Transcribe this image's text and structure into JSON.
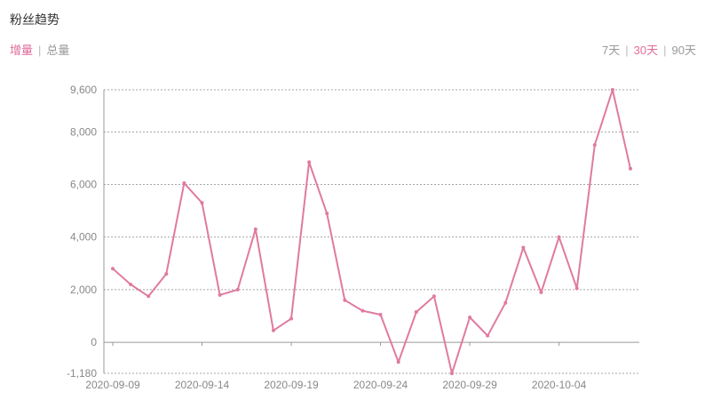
{
  "header": {
    "title": "粉丝趋势"
  },
  "mode_tabs": [
    {
      "label": "增量",
      "active": true
    },
    {
      "label": "总量",
      "active": false
    }
  ],
  "range_tabs": [
    {
      "label": "7天",
      "active": false
    },
    {
      "label": "30天",
      "active": true
    },
    {
      "label": "90天",
      "active": false
    }
  ],
  "separator": "|",
  "colors": {
    "accent": "#e06c9a",
    "line": "#e07aa0",
    "axis": "#999999",
    "grid": "#888888",
    "text": "#888888"
  },
  "chart_data": {
    "type": "line",
    "grid": true,
    "ylim": [
      -1180,
      9600
    ],
    "yticks": [
      -1180,
      0,
      2000,
      4000,
      6000,
      8000,
      9600
    ],
    "ytick_labels": [
      "-1,180",
      "0",
      "2,000",
      "4,000",
      "6,000",
      "8,000",
      "9,600"
    ],
    "xtick_labels": [
      "2020-09-09",
      "2020-09-14",
      "2020-09-19",
      "2020-09-24",
      "2020-09-29",
      "2020-10-04"
    ],
    "x": [
      "2020-09-09",
      "2020-09-10",
      "2020-09-11",
      "2020-09-12",
      "2020-09-13",
      "2020-09-14",
      "2020-09-15",
      "2020-09-16",
      "2020-09-17",
      "2020-09-18",
      "2020-09-19",
      "2020-09-20",
      "2020-09-21",
      "2020-09-22",
      "2020-09-23",
      "2020-09-24",
      "2020-09-25",
      "2020-09-26",
      "2020-09-27",
      "2020-09-28",
      "2020-09-29",
      "2020-09-30",
      "2020-10-01",
      "2020-10-02",
      "2020-10-03",
      "2020-10-04",
      "2020-10-05",
      "2020-10-06",
      "2020-10-07",
      "2020-10-08"
    ],
    "series": [
      {
        "values": [
          2800,
          2200,
          1750,
          2600,
          6050,
          5300,
          1800,
          2000,
          4300,
          450,
          900,
          6850,
          4900,
          1600,
          1200,
          1050,
          -750,
          1150,
          1750,
          -1180,
          950,
          250,
          1500,
          3600,
          1900,
          4000,
          2050,
          7500,
          9600,
          6600
        ]
      }
    ]
  }
}
